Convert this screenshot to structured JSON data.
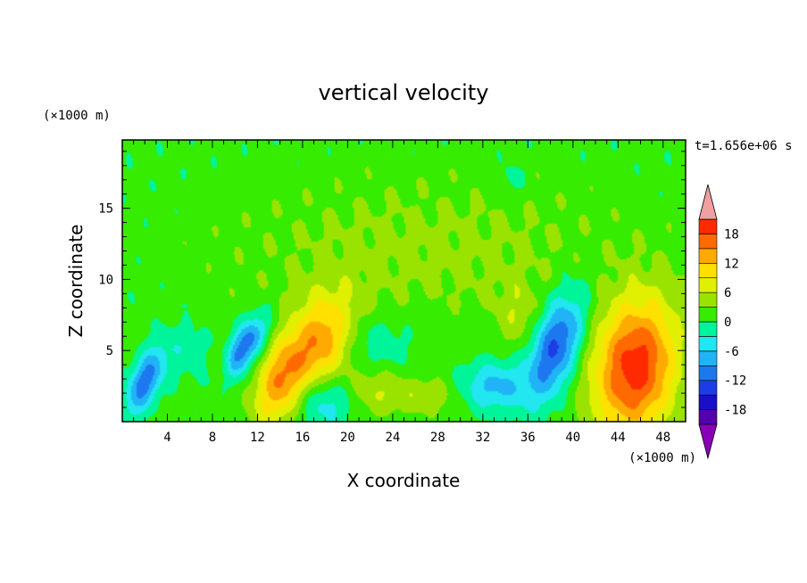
{
  "chart_data": {
    "type": "heatmap",
    "title": "vertical velocity",
    "xlabel": "X coordinate",
    "ylabel": "Z coordinate",
    "x_unit": "(×1000 m)",
    "y_unit": "(×1000 m)",
    "time_label": "t=1.656e+06 s",
    "xlim": [
      0,
      50
    ],
    "ylim": [
      0,
      19.8
    ],
    "x_ticks": [
      4,
      8,
      12,
      16,
      20,
      24,
      28,
      32,
      36,
      40,
      44,
      48
    ],
    "y_ticks": [
      5,
      10,
      15
    ],
    "grid": false,
    "background_value": 1,
    "features": [
      {
        "x": 2.0,
        "z": 2.8,
        "sx": 1.0,
        "sz": 1.6,
        "amp": -12,
        "tilt": 0.4
      },
      {
        "x": 5.5,
        "z": 5.0,
        "sx": 1.6,
        "sz": 1.4,
        "amp": -3,
        "tilt": 0
      },
      {
        "x": 9.0,
        "z": 3.5,
        "sx": 0.8,
        "sz": 1.2,
        "amp": 5,
        "tilt": 0
      },
      {
        "x": 10.0,
        "z": 4.2,
        "sx": 1.0,
        "sz": 1.4,
        "amp": -9,
        "tilt": 0.5
      },
      {
        "x": 11.5,
        "z": 6.0,
        "sx": 1.0,
        "sz": 1.2,
        "amp": -8,
        "tilt": 0.4
      },
      {
        "x": 14.0,
        "z": 2.8,
        "sx": 1.5,
        "sz": 2.2,
        "amp": 13,
        "tilt": 0.3
      },
      {
        "x": 17.8,
        "z": 5.6,
        "sx": 2.0,
        "sz": 2.4,
        "amp": 13,
        "tilt": 0.2
      },
      {
        "x": 18.0,
        "z": 1.5,
        "sx": 1.8,
        "sz": 1.4,
        "amp": -7,
        "tilt": 0
      },
      {
        "x": 22.5,
        "z": 2.2,
        "sx": 1.8,
        "sz": 1.2,
        "amp": 5,
        "tilt": 0
      },
      {
        "x": 27.0,
        "z": 1.8,
        "sx": 2.0,
        "sz": 1.0,
        "amp": 4,
        "tilt": 0
      },
      {
        "x": 22.0,
        "z": 5.5,
        "sx": 2.5,
        "sz": 1.5,
        "amp": -4,
        "tilt": 0
      },
      {
        "x": 33.0,
        "z": 2.5,
        "sx": 2.0,
        "sz": 1.2,
        "amp": -8,
        "tilt": 0
      },
      {
        "x": 35.0,
        "z": 7.5,
        "sx": 1.2,
        "sz": 1.6,
        "amp": 4,
        "tilt": 0
      },
      {
        "x": 38.5,
        "z": 5.3,
        "sx": 1.5,
        "sz": 2.6,
        "amp": -14,
        "tilt": 0.35
      },
      {
        "x": 45.5,
        "z": 3.8,
        "sx": 2.6,
        "sz": 3.4,
        "amp": 19,
        "tilt": 0.1
      },
      {
        "x": 27.0,
        "z": 12.0,
        "sx": 12.0,
        "sz": 3.5,
        "amp": 3,
        "tilt": 0
      },
      {
        "x": 34.5,
        "z": 17.0,
        "sx": 0.8,
        "sz": 0.8,
        "amp": -3,
        "tilt": 0
      }
    ],
    "colorbar": {
      "ticks": [
        18,
        12,
        6,
        0,
        -6,
        -12,
        -18
      ],
      "levels": [
        -21,
        -18,
        -15,
        -12,
        -9,
        -6,
        -3,
        0,
        3,
        6,
        9,
        12,
        15,
        18,
        21
      ],
      "colors": [
        "#8a00b8",
        "#5500b0",
        "#1a0ec8",
        "#1c3ce6",
        "#1d78f0",
        "#20b4f6",
        "#22e6f0",
        "#00f59a",
        "#36ec00",
        "#9ae300",
        "#e0f000",
        "#ffe000",
        "#ffaa00",
        "#ff6a00",
        "#ff2a00",
        "#f0a0a0"
      ]
    }
  }
}
